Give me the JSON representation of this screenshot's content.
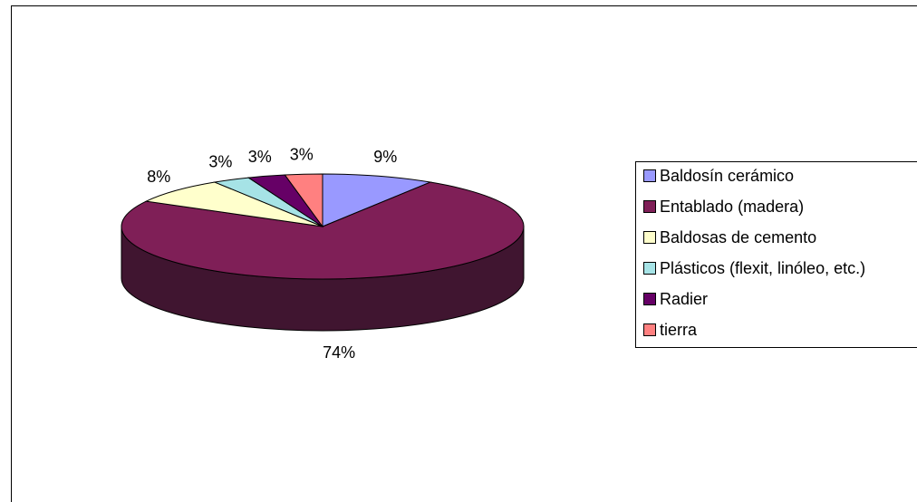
{
  "chart_data": {
    "type": "pie",
    "categories": [
      "Baldosín cerámico",
      "Entablado (madera)",
      "Baldosas de cemento",
      "Plásticos (flexit, linóleo, etc.)",
      "Radier",
      "tierra"
    ],
    "values": [
      9,
      74,
      8,
      3,
      3,
      3
    ],
    "data_labels": [
      "9%",
      "74%",
      "8%",
      "3%",
      "3%",
      "3%"
    ],
    "colors": [
      "#9999FF",
      "#7F1F57",
      "#FFFFCC",
      "#A6E3E6",
      "#660066",
      "#FF8080"
    ],
    "side_colors": [
      "#5A5A99",
      "#401530",
      "#99997A",
      "#638A8C",
      "#330033",
      "#994D4D"
    ],
    "legend_position": "right",
    "style": "3d",
    "title": ""
  }
}
